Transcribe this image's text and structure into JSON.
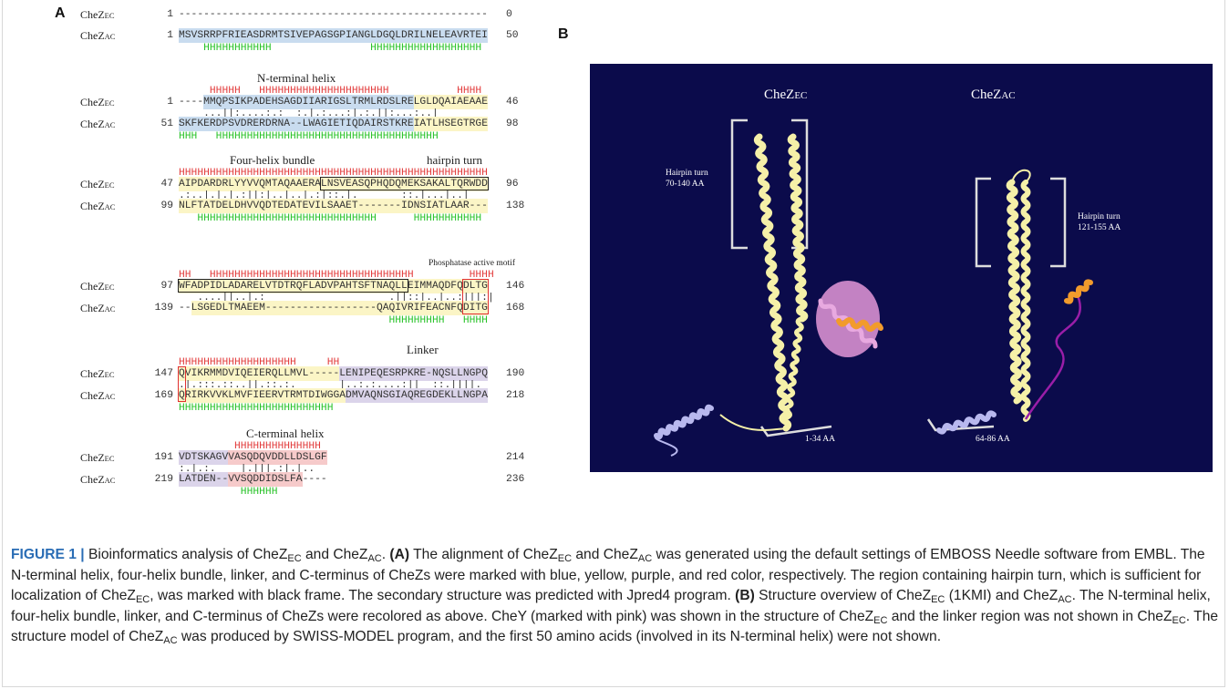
{
  "panel_a": {
    "label": "A",
    "names": {
      "ec": {
        "base": "CheZ",
        "sub": "EC"
      },
      "ac": {
        "base": "CheZ",
        "sub": "AC"
      }
    },
    "blocks": [
      {
        "ec": {
          "start": 1,
          "segments": [
            {
              "text": "--------------------------------------------------",
              "color": null
            }
          ],
          "end": 0
        },
        "ac": {
          "start": 1,
          "segments": [
            {
              "text": "MSVSRRPFRIEASDRMTSIVEPAGSGPIANGLDGQLDRILNELEAVRTEI",
              "color": "#c9dcef"
            }
          ],
          "end": 50
        },
        "ss_bottom": "    HHHHHHHHHHH                HHHHHHHHHHHHHHHHHH"
      },
      {
        "titles": [
          "N-terminal helix"
        ],
        "ss_top": "     HHHHH   HHHHHHHHHHHHHHHHHHHHH           HHHH",
        "ec": {
          "start": 1,
          "segments": [
            {
              "text": "----",
              "color": null
            },
            {
              "text": "MMQPSIKPADEHSAGDIIARIGSLTRMLRDSLRE",
              "color": "#c9dcef"
            },
            {
              "text": "LGLDQAIAEAAE",
              "color": "#fbf5c6"
            }
          ],
          "end": 46
        },
        "match": "    ...||:....:.:  :.|.:...:|.:.||:...:..|",
        "ac": {
          "start": 51,
          "segments": [
            {
              "text": "SKFKERDPSVDRERDRNA--LWAGIETIQDAIRSTKRE",
              "color": "#c9dcef"
            },
            {
              "text": "IATLHSEGTRGE",
              "color": "#fbf5c6"
            }
          ],
          "end": 98
        },
        "ss_bottom": "HHH   HHHHHHHHHHHHHHHHHHHHHHHHHHHHHHHHHHHH"
      },
      {
        "titles": [
          "Four-helix bundle",
          "hairpin turn"
        ],
        "ss_top": "HHHHHHHHHHHHHHHHHHHHHHHHHHHHHHHHHHHHHHHHHHHHHHHHHH",
        "ec": {
          "start": 47,
          "segments": [
            {
              "text": "AIPDARDRLYYVVQMTAQAAERALNSVEASQPHQDQMEKSAKALTQRWDD",
              "color": "#fbf5c6"
            }
          ],
          "end": 96
        },
        "match": ".:..|.|.|.:||:|..|..|.:|::.|.       ::.|...|..|",
        "ac": {
          "start": 99,
          "segments": [
            {
              "text": "NLFTATDELDHVVQDTEDATEVILSAAET-------IDNSIATLAAR---",
              "color": "#fbf5c6"
            }
          ],
          "end": 138
        },
        "ss_bottom": "   HHHHHHHHHHHHHHHHHHHHHHHHHHHHH      HHHHHHHHHHH"
      },
      {
        "titles": [
          "Phosphatase active motif"
        ],
        "ss_top": "HH   HHHHHHHHHHHHHHHHHHHHHHHHHHHHHHHHH         HHHH",
        "ec": {
          "start": 97,
          "segments": [
            {
              "text": "WFADPIDLADARELVTDTRQFLADVPAHTSFTNAQLLEIMMAQDFQDLTG",
              "color": "#fbf5c6"
            }
          ],
          "end": 146
        },
        "match": "   ....||..|.:                    .||::|..|..:|||:|",
        "ac": {
          "start": 139,
          "segments": [
            {
              "text": "--",
              "color": null
            },
            {
              "text": "LSGEDLTMAEEM------------------QAQIVRIFEACNFQDITG",
              "color": "#fbf5c6"
            }
          ],
          "end": 168
        },
        "ss_bottom": "                                  HHHHHHHHH   HHHH"
      },
      {
        "titles": [
          "Linker"
        ],
        "ss_top": "HHHHHHHHHHHHHHHHHHH     HH",
        "ec": {
          "start": 147,
          "segments": [
            {
              "text": "QVIKRMMDVIQEIERQLLMVL-----",
              "color": "#fbf5c6"
            },
            {
              "text": "LENIPEQESRPKRE-NQSLLNGPQ",
              "color": "#dbd4ea"
            }
          ],
          "end": 190
        },
        "match": ".|.:::.::..||.::.:.       |..:.:....:||  ::.||||.",
        "ac": {
          "start": 169,
          "segments": [
            {
              "text": "QRIRKVVKLMVFIEERVTRMTDIWGGA",
              "color": "#fbf5c6"
            },
            {
              "text": "DMVAQNSGIAQREGDEKLLNGPA",
              "color": "#dbd4ea"
            }
          ],
          "end": 218
        },
        "ss_bottom": "HHHHHHHHHHHHHHHHHHHHHHHHH"
      },
      {
        "titles": [
          "C-terminal helix"
        ],
        "ss_top": "         HHHHHHHHHHHHHH",
        "ec": {
          "start": 191,
          "segments": [
            {
              "text": "VDTSKAGV",
              "color": "#dbd4ea"
            },
            {
              "text": "VASQDQVDDLLDSLGF",
              "color": "#f6caca"
            }
          ],
          "end": 214
        },
        "match": ":.|.:.    |.|||.:|.|..",
        "ac": {
          "start": 219,
          "segments": [
            {
              "text": "LATDEN--",
              "color": "#dbd4ea"
            },
            {
              "text": "VVSQDDIDSLFA",
              "color": "#f6caca"
            },
            {
              "text": "----",
              "color": null
            }
          ],
          "end": 236
        },
        "ss_bottom": "          HHHHHH"
      }
    ]
  },
  "panel_b": {
    "label": "B",
    "background": "#0b0b4b",
    "titles": [
      {
        "base": "CheZ",
        "sub": "EC"
      },
      {
        "base": "CheZ",
        "sub": "AC"
      }
    ],
    "annotations": [
      [
        "Hairpin turn",
        "70-140 AA"
      ],
      [
        "Hairpin turn",
        "121-155 AA"
      ],
      [
        "1-34 AA"
      ],
      [
        "64-86 AA"
      ]
    ]
  },
  "caption": [
    {
      "text": "FIGURE 1 |",
      "style": "fig"
    },
    {
      "text": " Bioinformatics analysis of CheZ",
      "style": "normal"
    },
    {
      "text": "EC",
      "style": "sub"
    },
    {
      "text": " and CheZ",
      "style": "normal"
    },
    {
      "text": "AC",
      "style": "sub"
    },
    {
      "text": ". ",
      "style": "normal"
    },
    {
      "text": "(A)",
      "style": "bold"
    },
    {
      "text": " The alignment of CheZ",
      "style": "normal"
    },
    {
      "text": "EC",
      "style": "sub"
    },
    {
      "text": " and CheZ",
      "style": "normal"
    },
    {
      "text": "AC",
      "style": "sub"
    },
    {
      "text": " was generated using the default settings of EMBOSS Needle software from EMBL. The N-terminal helix, four-helix bundle, linker, and C-terminus of CheZs were marked with blue, yellow, purple, and red color, respectively. The region containing hairpin turn, which is sufficient for localization of CheZ",
      "style": "normal"
    },
    {
      "text": "EC",
      "style": "sub"
    },
    {
      "text": ", was marked with black frame. The secondary structure was predicted with Jpred4 program. ",
      "style": "normal"
    },
    {
      "text": "(B)",
      "style": "bold"
    },
    {
      "text": " Structure overview of CheZ",
      "style": "normal"
    },
    {
      "text": "EC",
      "style": "sub"
    },
    {
      "text": " (1KMI) and CheZ",
      "style": "normal"
    },
    {
      "text": "AC",
      "style": "sub"
    },
    {
      "text": ". The N-terminal helix, four-helix bundle, linker, and C-terminus of CheZs were recolored as above. CheY (marked with pink) was shown in the structure of CheZ",
      "style": "normal"
    },
    {
      "text": "EC",
      "style": "sub"
    },
    {
      "text": " and the linker region was not shown in CheZ",
      "style": "normal"
    },
    {
      "text": "EC",
      "style": "sub"
    },
    {
      "text": ". The structure model of CheZ",
      "style": "normal"
    },
    {
      "text": "AC",
      "style": "sub"
    },
    {
      "text": " was produced by SWISS-MODEL program, and the first 50 amino acids (involved in its N-terminal helix) were not shown.",
      "style": "normal"
    }
  ]
}
